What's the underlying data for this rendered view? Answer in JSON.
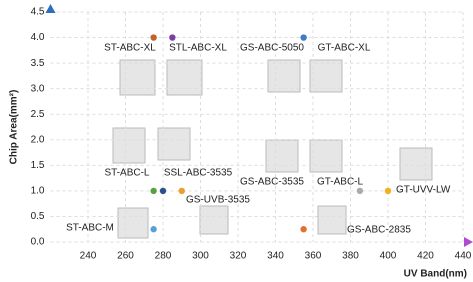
{
  "chart_data": {
    "type": "scatter",
    "x_label": "UV Band(nm)",
    "y_label": "Chip Area(mm²)",
    "xlim": [
      220,
      440
    ],
    "xticks": [
      240,
      260,
      280,
      300,
      320,
      340,
      360,
      380,
      400,
      420,
      440
    ],
    "ylim": [
      0,
      4.5
    ],
    "yticks": [
      {
        "value": 0,
        "label": "0.0"
      },
      0.5,
      {
        "value": 1,
        "label": "1.0"
      },
      1.5,
      {
        "value": 2,
        "label": "2.0"
      },
      2.5,
      {
        "value": 3,
        "label": "3.0"
      },
      3.5,
      {
        "value": 4,
        "label": "4.0"
      },
      4.5
    ],
    "grid": true,
    "series": [
      {
        "name": "ST-ABC-XL",
        "color": "#c0622a",
        "x": [
          275
        ],
        "values": [
          4.0
        ]
      },
      {
        "name": "STL-ABC-XL",
        "color": "#7a3fa0",
        "x": [
          285
        ],
        "values": [
          4.0
        ]
      },
      {
        "name": "GS-ABC-5050",
        "color": "#3a7fc4",
        "x": [
          355
        ],
        "values": [
          4.0
        ]
      },
      {
        "name": "ST-ABC-L",
        "color": "#5aa040",
        "x": [
          275
        ],
        "values": [
          1.0
        ]
      },
      {
        "name": "SSL-ABC-3535",
        "color": "#2b4f8a",
        "x": [
          280
        ],
        "values": [
          1.0
        ]
      },
      {
        "name": "GS-UVB-3535",
        "color": "#e8a030",
        "x": [
          290
        ],
        "values": [
          1.0
        ]
      },
      {
        "name": "GS-ABC-3535",
        "color": "#aaaaaa",
        "x": [
          385
        ],
        "values": [
          1.0
        ]
      },
      {
        "name": "GT-UVV-LW",
        "color": "#f0b020",
        "x": [
          400
        ],
        "values": [
          1.0
        ]
      },
      {
        "name": "ST-ABC-M",
        "color": "#5aa0d8",
        "x": [
          275
        ],
        "values": [
          0.25
        ]
      },
      {
        "name": "GS-ABC-2835",
        "color": "#e07030",
        "x": [
          355
        ],
        "values": [
          0.25
        ]
      }
    ],
    "annotations": [
      "GT-ABC-XL",
      "GT-ABC-L"
    ]
  }
}
